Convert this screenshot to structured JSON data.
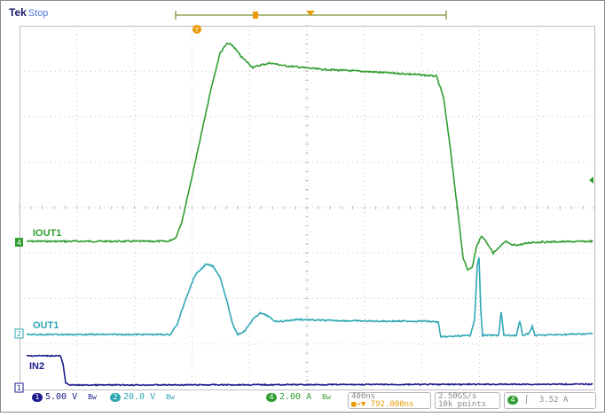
{
  "header": {
    "brand": "Tek",
    "state": "Stop"
  },
  "channels": {
    "iout1": {
      "label": "IOUT1",
      "color": "#2f9e2f"
    },
    "out1": {
      "label": "OUT1",
      "color": "#2fa7b5"
    },
    "in2": {
      "label": "IN2",
      "color": "#1c1c8c"
    }
  },
  "status_bar": {
    "ch1": {
      "num": "1",
      "scale": "5.00 V",
      "coupling": "Bw"
    },
    "ch2": {
      "num": "2",
      "scale": "20.0 V",
      "coupling": "Bw"
    },
    "ch4": {
      "num": "4",
      "scale": "2.00 A",
      "coupling": "Bw"
    },
    "timebase": "400ns",
    "trigger_pos": "792.000ns",
    "sample_rate": "2.50GS/s",
    "record_length": "10k points",
    "trigger_ch": "4",
    "trigger_slope": "∫",
    "trigger_level": "3.52 A"
  },
  "colors": {
    "accent": "#e89a00",
    "grid": "#bdbdbd"
  }
}
